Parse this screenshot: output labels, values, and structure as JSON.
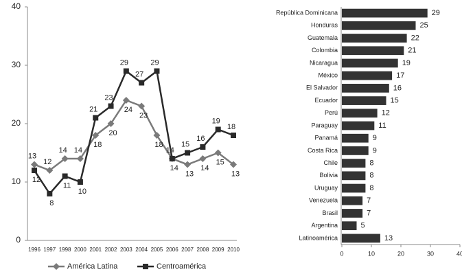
{
  "chart_data": [
    {
      "type": "line",
      "categories": [
        "1996",
        "1997",
        "1998",
        "2000",
        "2001",
        "2002",
        "2003",
        "2004",
        "2005",
        "2006",
        "2007",
        "2008",
        "2009",
        "2010"
      ],
      "series": [
        {
          "name": "América Latina",
          "color": "#7a7a7a",
          "marker": "diamond",
          "values": [
            13,
            12,
            14,
            14,
            18,
            20,
            24,
            23,
            18,
            14,
            13,
            14,
            15,
            13
          ]
        },
        {
          "name": "Centroamérica",
          "color": "#2a2a2a",
          "marker": "square",
          "values": [
            12,
            8,
            11,
            10,
            21,
            23,
            29,
            27,
            29,
            14,
            15,
            16,
            19,
            18
          ]
        }
      ],
      "ylim": [
        0,
        40
      ],
      "yticks": [
        0,
        10,
        20,
        30,
        40
      ],
      "grid": false,
      "legend": "bottom"
    },
    {
      "type": "bar",
      "orientation": "horizontal",
      "categories": [
        "República Dominicana",
        "Honduras",
        "Guatemala",
        "Colombia",
        "Nicaragua",
        "México",
        "El Salvador",
        "Ecuador",
        "Perú",
        "Paraguay",
        "Panamá",
        "Costa Rica",
        "Chile",
        "Bolivia",
        "Uruguay",
        "Venezuela",
        "Brasil",
        "Argentina",
        "Latinoamérica"
      ],
      "values": [
        29,
        25,
        22,
        21,
        19,
        17,
        16,
        15,
        12,
        11,
        9,
        9,
        8,
        8,
        8,
        7,
        7,
        5,
        13
      ],
      "color": "#333333",
      "xlim": [
        0,
        40
      ],
      "xticks": [
        0,
        10,
        20,
        30,
        40
      ],
      "grid": false
    }
  ]
}
